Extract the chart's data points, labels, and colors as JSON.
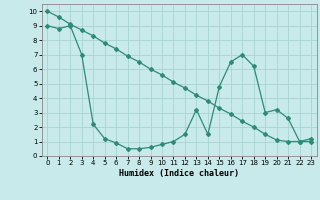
{
  "line1_x": [
    0,
    1,
    2,
    3,
    4,
    5,
    6,
    7,
    8,
    9,
    10,
    11,
    12,
    13,
    14,
    15,
    16,
    17,
    18,
    19,
    20,
    21,
    22,
    23
  ],
  "line1_y": [
    10,
    9.6,
    9.1,
    8.7,
    8.3,
    7.8,
    7.4,
    6.9,
    6.5,
    6.0,
    5.6,
    5.1,
    4.7,
    4.2,
    3.8,
    3.3,
    2.9,
    2.4,
    2.0,
    1.5,
    1.1,
    1.0,
    1.0,
    1.0
  ],
  "line2_x": [
    0,
    1,
    2,
    3,
    4,
    5,
    6,
    7,
    8,
    9,
    10,
    11,
    12,
    13,
    14,
    15,
    16,
    17,
    18,
    19,
    20,
    21,
    22,
    23
  ],
  "line2_y": [
    9.0,
    8.8,
    9.0,
    7.0,
    2.2,
    1.2,
    0.9,
    0.5,
    0.5,
    0.6,
    0.8,
    1.0,
    1.5,
    3.2,
    1.5,
    4.8,
    6.5,
    7.0,
    6.2,
    3.0,
    3.2,
    2.6,
    1.0,
    1.2
  ],
  "color": "#2e8b74",
  "bg_color": "#c8eaea",
  "grid_color": "#a8d4d4",
  "xlabel": "Humidex (Indice chaleur)",
  "xlim": [
    -0.5,
    23.5
  ],
  "ylim": [
    0,
    10.5
  ],
  "xticks": [
    0,
    1,
    2,
    3,
    4,
    5,
    6,
    7,
    8,
    9,
    10,
    11,
    12,
    13,
    14,
    15,
    16,
    17,
    18,
    19,
    20,
    21,
    22,
    23
  ],
  "yticks": [
    0,
    1,
    2,
    3,
    4,
    5,
    6,
    7,
    8,
    9,
    10
  ],
  "marker": "D",
  "markersize": 2.0,
  "linewidth": 0.9
}
